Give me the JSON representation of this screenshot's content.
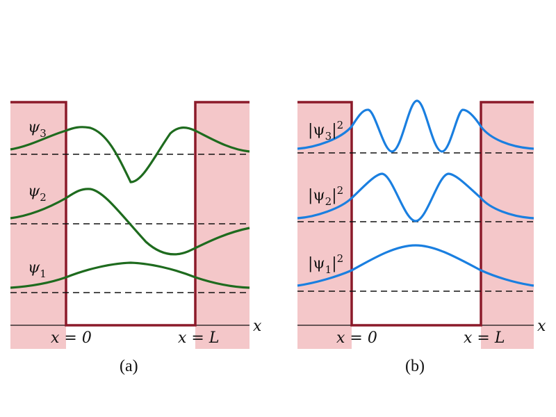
{
  "colors": {
    "barrier_fill": "#f4c7c9",
    "well_outline": "#8b1a2a",
    "psi_curve": "#1e6b1e",
    "prob_curve": "#1a7fe0",
    "axis": "#111111",
    "dashed": "#111111"
  },
  "panel_a": {
    "caption": "(a)",
    "axis_label": "x",
    "left_wall_label": "x = 0",
    "right_wall_label": "x = L",
    "states": [
      {
        "symbol": "ψ",
        "sub": "3"
      },
      {
        "symbol": "ψ",
        "sub": "2"
      },
      {
        "symbol": "ψ",
        "sub": "1"
      }
    ]
  },
  "panel_b": {
    "caption": "(b)",
    "axis_label": "x",
    "left_wall_label": "x = 0",
    "right_wall_label": "x = L",
    "states": [
      {
        "open": "|ψ",
        "sub": "3",
        "close": "|",
        "sup": "2"
      },
      {
        "open": "|ψ",
        "sub": "2",
        "close": "|",
        "sup": "2"
      },
      {
        "open": "|ψ",
        "sub": "1",
        "close": "|",
        "sup": "2"
      }
    ]
  }
}
